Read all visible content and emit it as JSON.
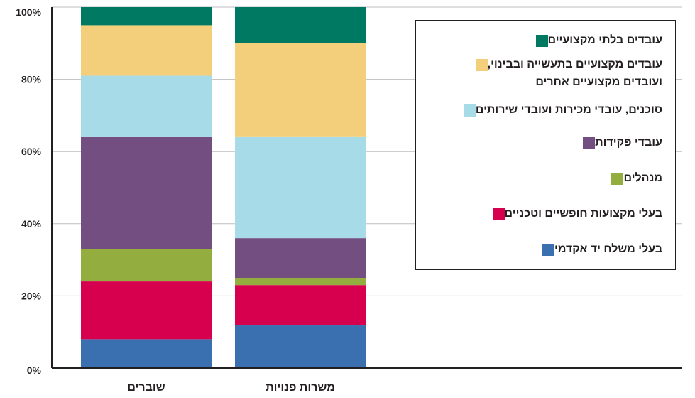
{
  "chart_data": {
    "type": "bar",
    "stacked": true,
    "categories": [
      "שוברים",
      "משרות פנויות"
    ],
    "series": [
      {
        "name": "בעלי משלח יד אקדמי",
        "color": "#3a6fb0",
        "values": [
          8,
          12
        ]
      },
      {
        "name": "בעלי מקצועות חופשיים וטכניים",
        "color": "#d6004f",
        "values": [
          16,
          11
        ]
      },
      {
        "name": "מנהלים",
        "color": "#93ae3e",
        "values": [
          9,
          2
        ]
      },
      {
        "name": "עובדי פקידות",
        "color": "#734e80",
        "values": [
          31,
          11
        ]
      },
      {
        "name": "סוכנים, עובדי מכירות ועובדי שירותים",
        "color": "#a8dbe8",
        "values": [
          17,
          28
        ]
      },
      {
        "name": "עובדים מקצועיים בתעשייה ובבינוי,\nועובדים מקצועיים אחרים",
        "color": "#f3cf7b",
        "values": [
          14,
          26
        ]
      },
      {
        "name": "עובדים בלתי מקצועיים",
        "color": "#007962",
        "values": [
          5,
          10
        ]
      }
    ],
    "ylim": [
      0,
      100
    ],
    "yticks": [
      "0%",
      "20%",
      "40%",
      "60%",
      "80%",
      "100%"
    ],
    "grid": true,
    "legend_position": "top-right",
    "xlabel": "",
    "ylabel": ""
  }
}
